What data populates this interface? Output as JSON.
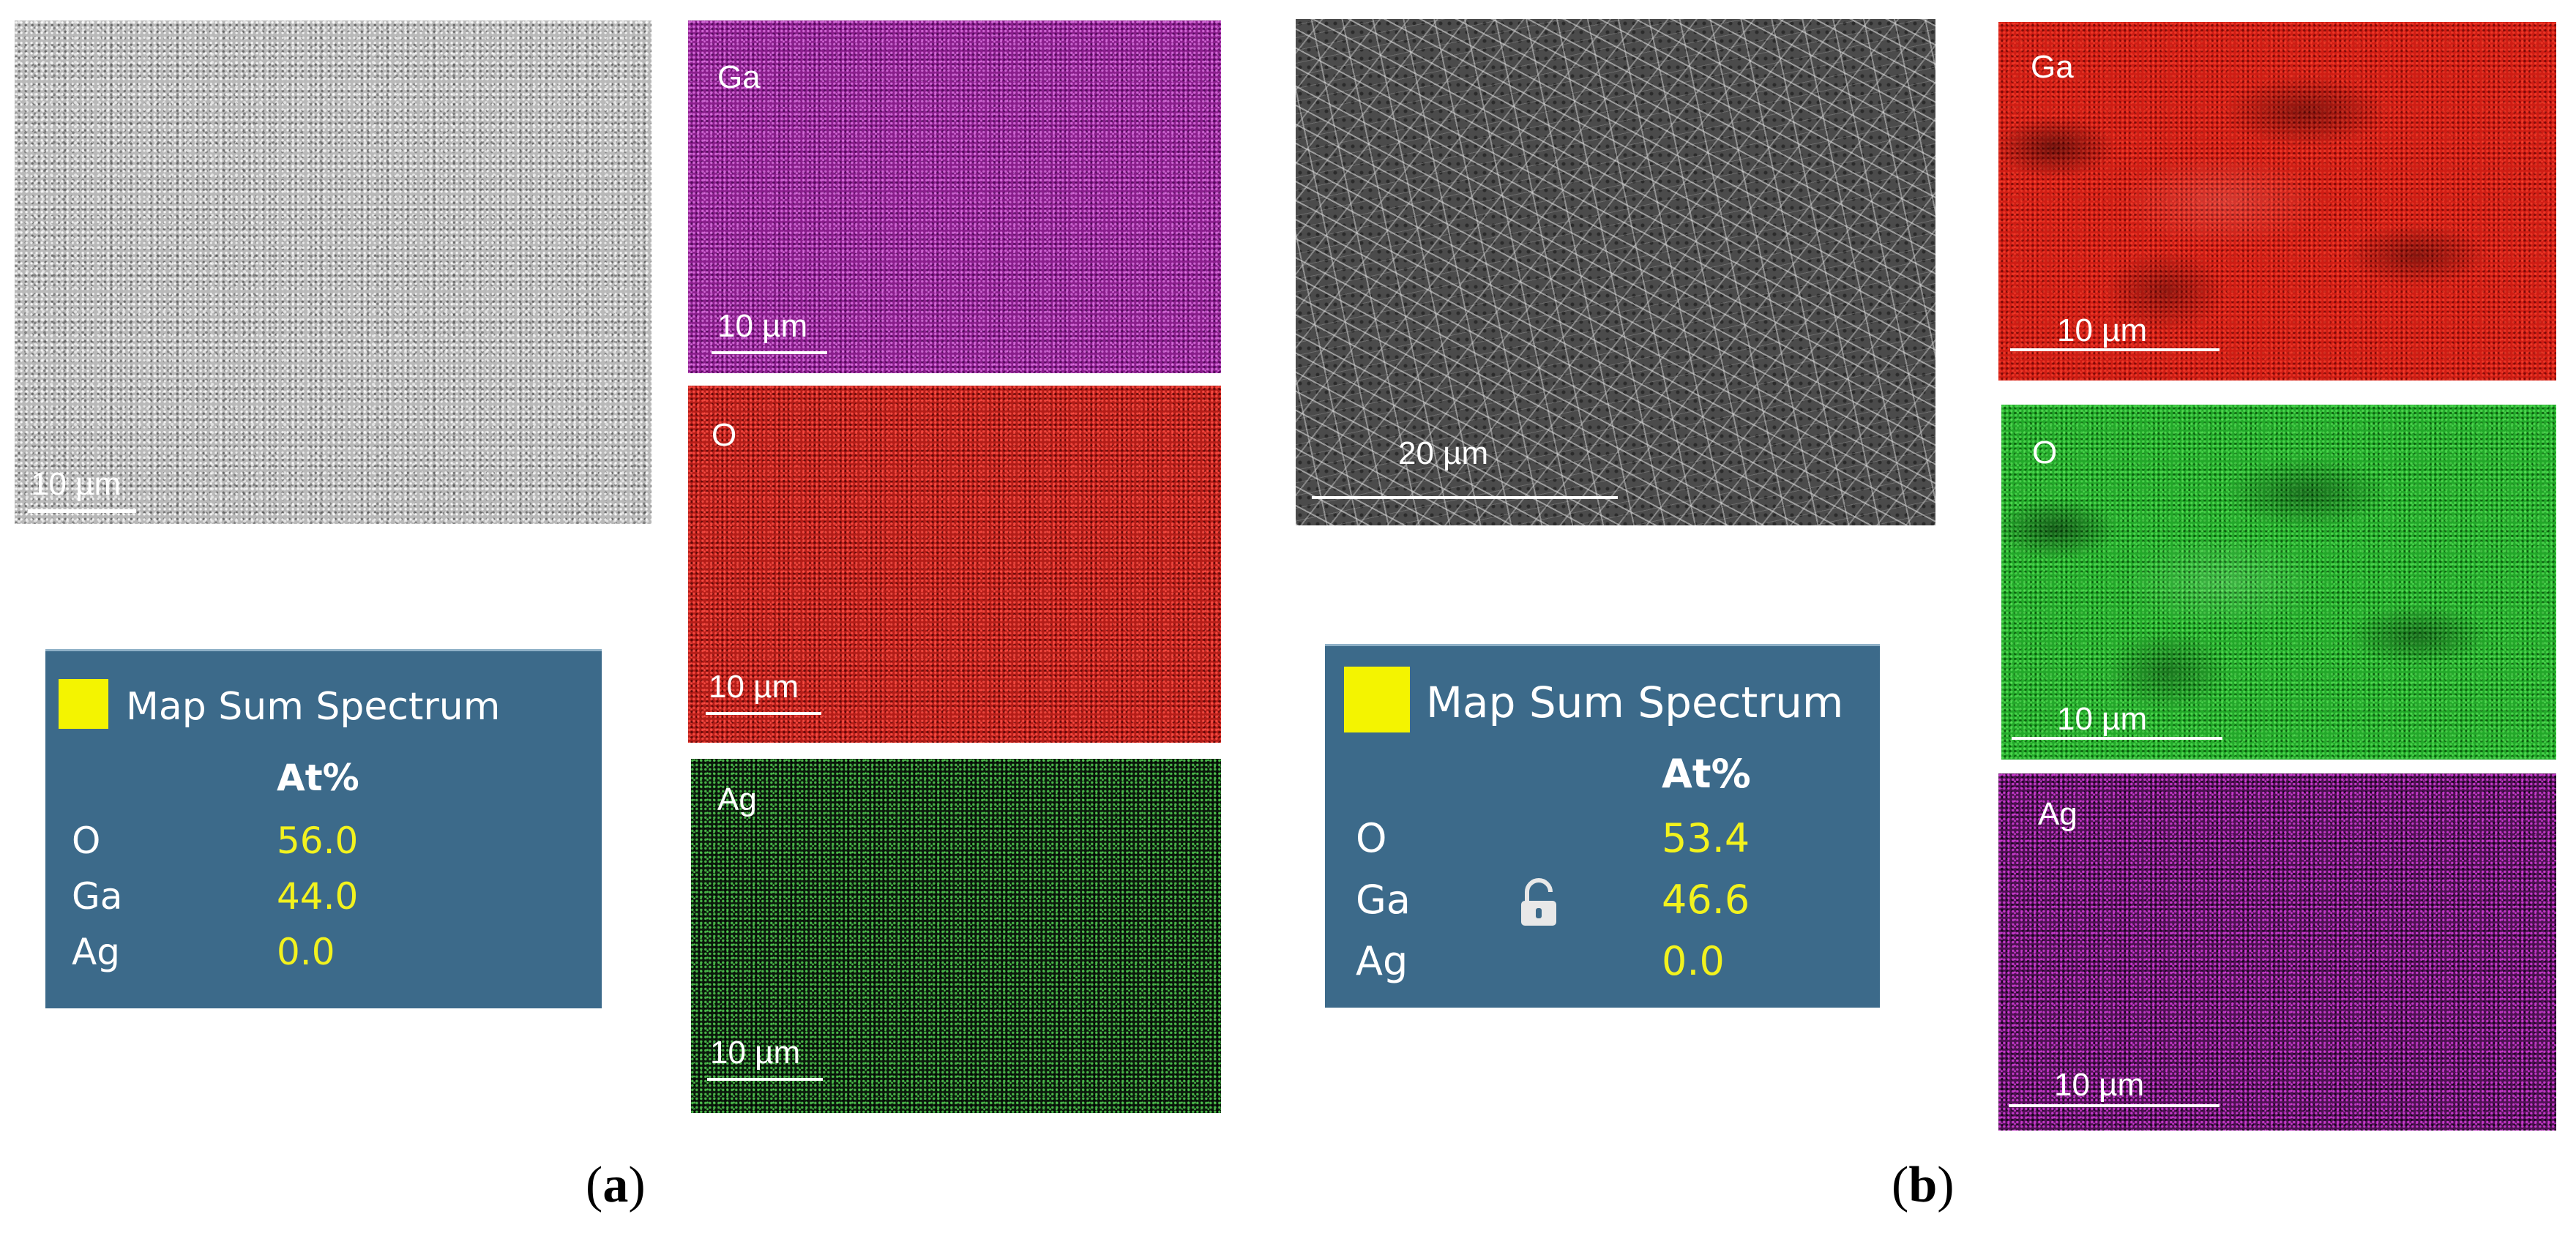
{
  "panel_a": {
    "caption": {
      "open": "(",
      "letter": "a",
      "close": ")"
    },
    "sem": {
      "scale": "10 µm"
    },
    "maps": [
      {
        "element": "Ga",
        "scale": "10 µm",
        "color": "#8a1e8c"
      },
      {
        "element": "O",
        "scale": "10 µm",
        "color": "#b41d18"
      },
      {
        "element": "Ag",
        "scale": "10 µm",
        "color": "#2fa03a"
      }
    ],
    "spectrum": {
      "title": "Map Sum Spectrum",
      "column_header": "At%",
      "rows": [
        {
          "element": "O",
          "value": "56.0"
        },
        {
          "element": "Ga",
          "value": "44.0"
        },
        {
          "element": "Ag",
          "value": "0.0"
        }
      ]
    }
  },
  "panel_b": {
    "caption": {
      "open": "(",
      "letter": "b",
      "close": ")"
    },
    "sem": {
      "scale": "20 µm"
    },
    "maps": [
      {
        "element": "Ga",
        "scale": "10 µm",
        "color": "#cf1d14"
      },
      {
        "element": "O",
        "scale": "10 µm",
        "color": "#23a82a"
      },
      {
        "element": "Ag",
        "scale": "10 µm",
        "color": "#b020b8"
      }
    ],
    "spectrum": {
      "title": "Map Sum Spectrum",
      "column_header": "At%",
      "lock_icon": "padlock-open-icon",
      "rows": [
        {
          "element": "O",
          "value": "53.4"
        },
        {
          "element": "Ga",
          "value": "46.6"
        },
        {
          "element": "Ag",
          "value": "0.0"
        }
      ]
    }
  },
  "colors": {
    "swatch": "#f4f400",
    "spectrum_bg": "#3c6a8a",
    "value_text": "#f2f21e"
  }
}
